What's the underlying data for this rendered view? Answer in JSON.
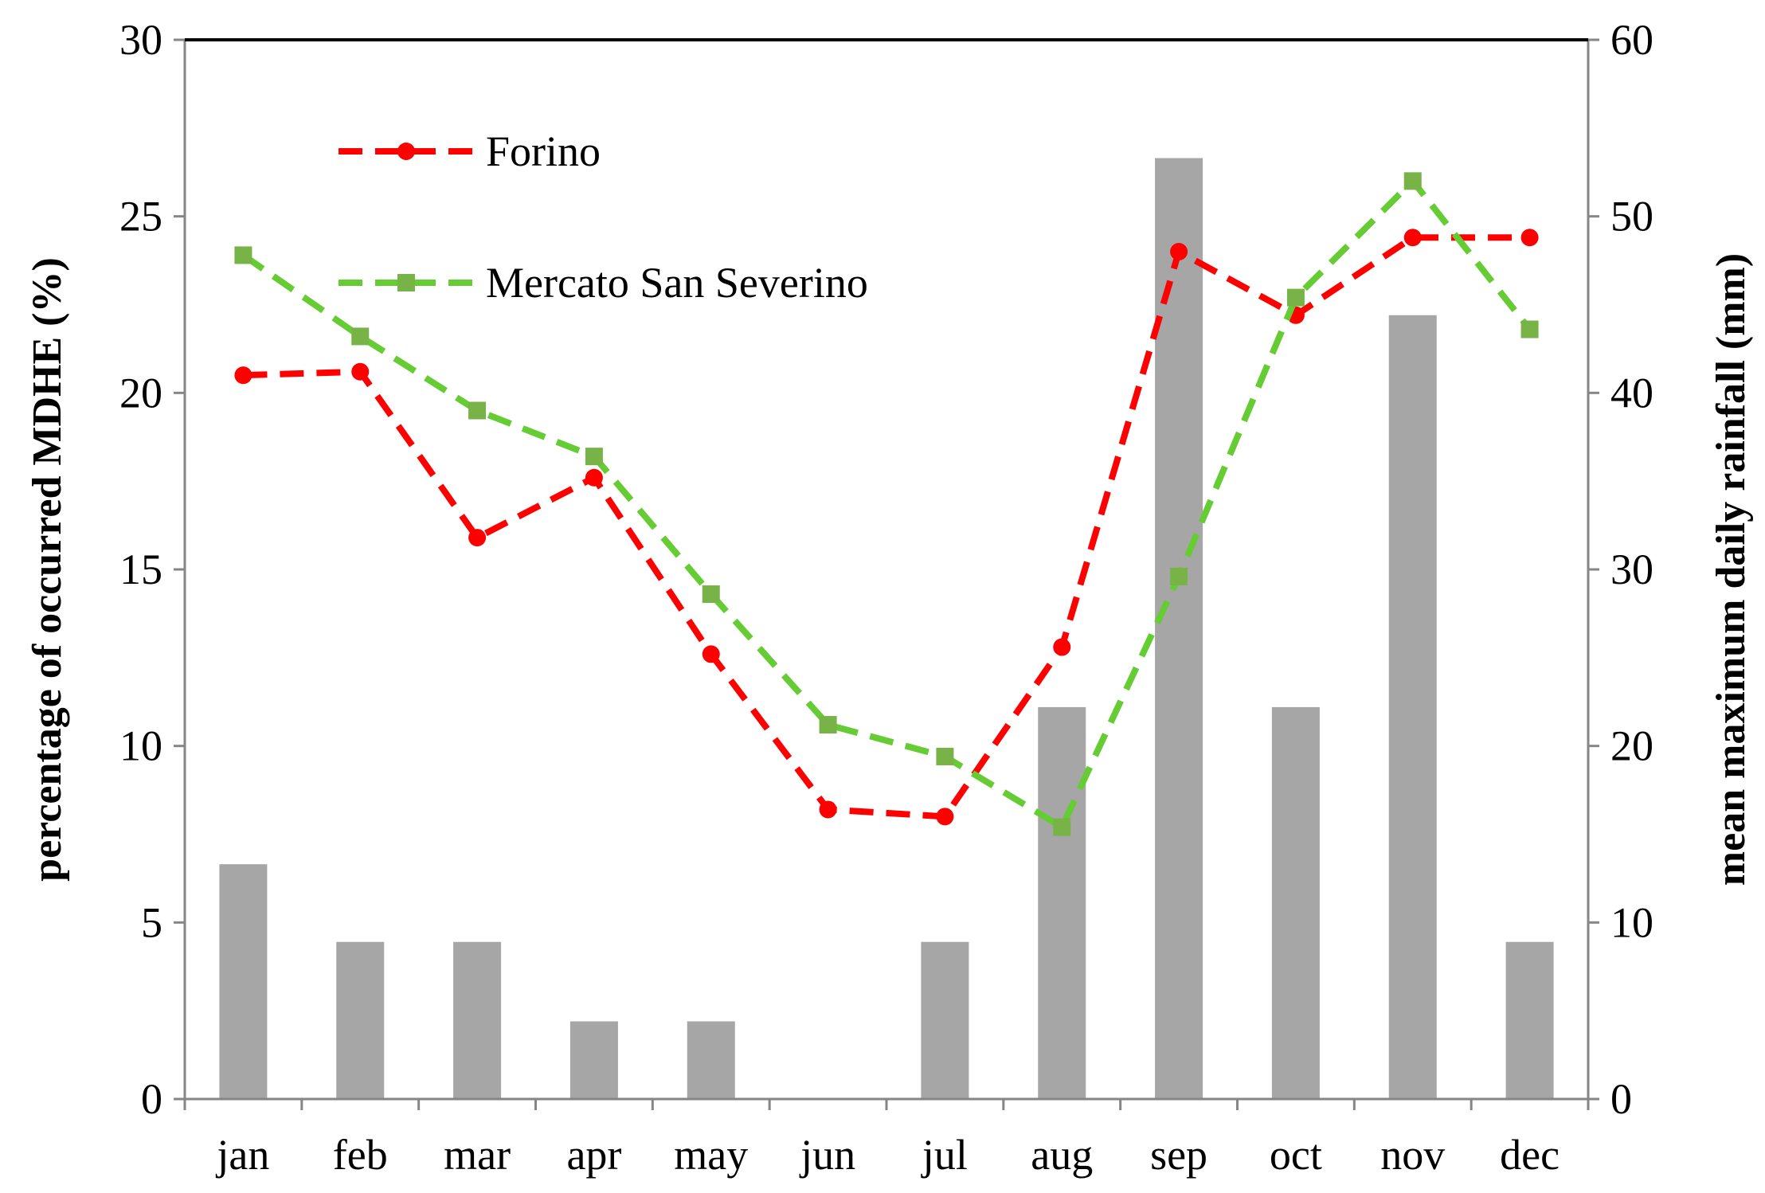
{
  "chart_data": {
    "type": "bar+line",
    "categories": [
      "jan",
      "feb",
      "mar",
      "apr",
      "may",
      "jun",
      "jul",
      "aug",
      "sep",
      "oct",
      "nov",
      "dec"
    ],
    "bars": {
      "axis": "right",
      "values": [
        13.3,
        8.9,
        8.9,
        4.4,
        4.4,
        0,
        8.9,
        22.2,
        53.3,
        22.2,
        44.4,
        8.9
      ],
      "color": "#a6a6a6"
    },
    "series": [
      {
        "name": "Forino",
        "axis": "left",
        "values": [
          20.5,
          20.6,
          15.9,
          17.6,
          12.6,
          8.2,
          8.0,
          12.8,
          24.0,
          22.2,
          24.4,
          24.4
        ],
        "color": "#ff0000",
        "marker": "circle",
        "dash": true
      },
      {
        "name": "Mercato San Severino",
        "axis": "left",
        "values": [
          23.9,
          21.6,
          19.5,
          18.2,
          14.3,
          10.6,
          9.7,
          7.7,
          14.8,
          22.7,
          26.0,
          21.8
        ],
        "color": "#66cc33",
        "marker_color": "#77b346",
        "marker": "square",
        "dash": true
      }
    ],
    "y_left": {
      "label": "percentage of occurred MDHE (%)",
      "min": 0,
      "max": 30,
      "ticks": [
        0,
        5,
        10,
        15,
        20,
        25,
        30
      ]
    },
    "y_right": {
      "label": "mean maximum daily rainfall (mm)",
      "min": 0,
      "max": 60,
      "ticks": [
        0,
        10,
        20,
        30,
        40,
        50,
        60
      ]
    },
    "xlabel": "",
    "title": "",
    "legend": "top-left",
    "grid": false
  }
}
